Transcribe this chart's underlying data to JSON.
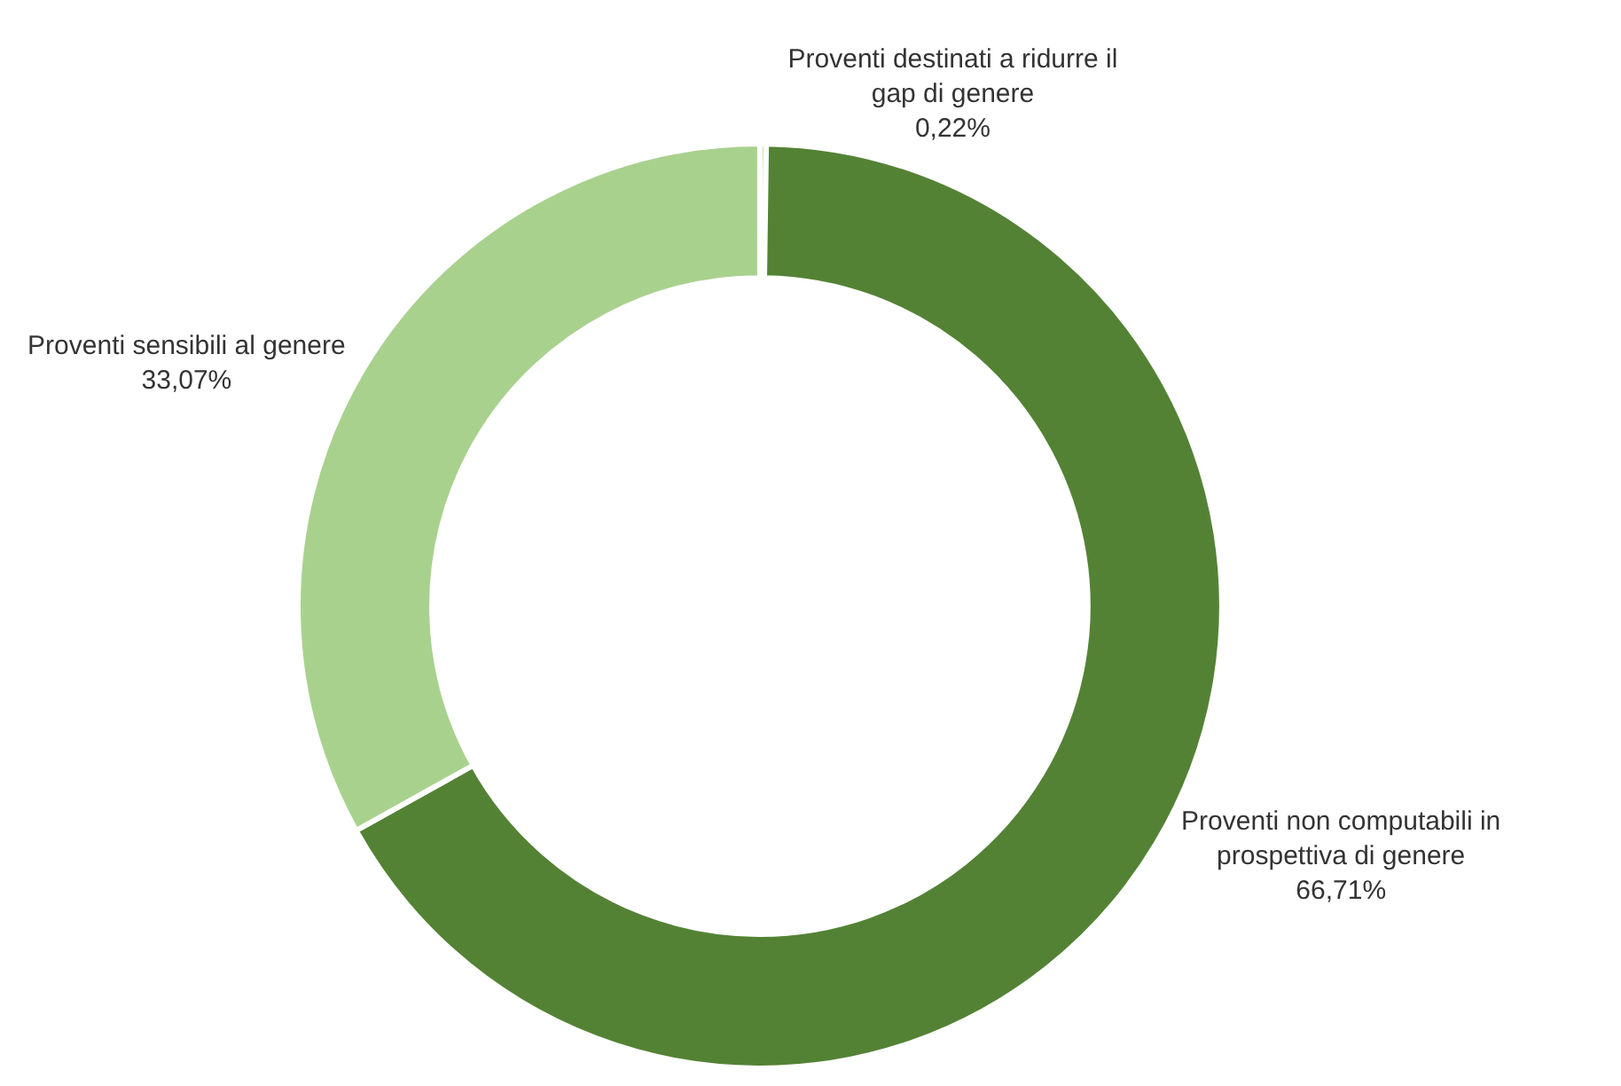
{
  "chart_data": {
    "type": "donut",
    "categories": [
      "Proventi destinati a ridurre il gap di genere",
      "Proventi non computabili in prospettiva di genere",
      "Proventi sensibili al genere"
    ],
    "values": [
      0.22,
      66.71,
      33.07
    ],
    "value_labels": [
      "0,22%",
      "66,71%",
      "33,07%"
    ],
    "colors": [
      "#c5e0b4",
      "#548235",
      "#a9d18e"
    ],
    "legend": false
  }
}
